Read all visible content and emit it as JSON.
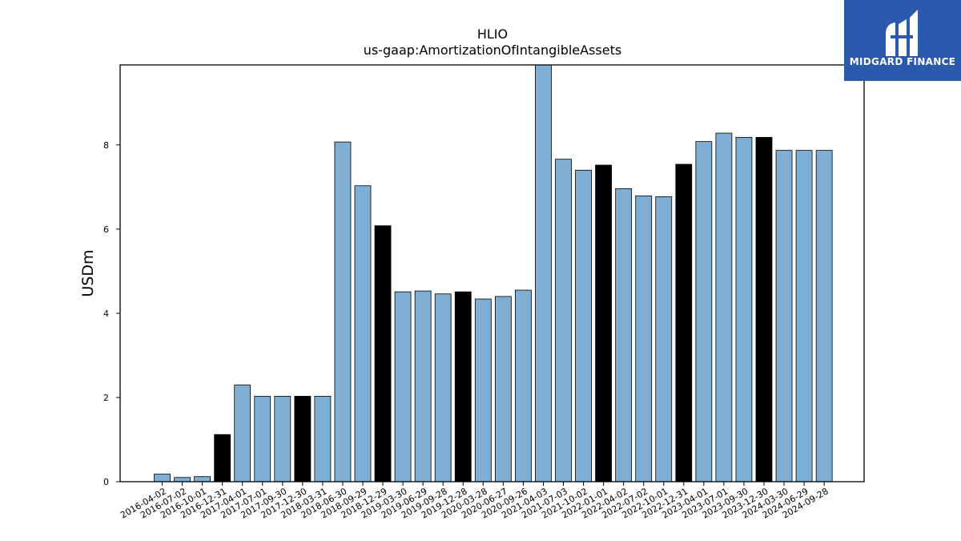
{
  "logo": {
    "text": "MIDGARD FINANCE",
    "bg_color": "#2b5aad"
  },
  "colors": {
    "default_bar": "#7eaed3",
    "highlight_bar": "#000000"
  },
  "chart_data": {
    "type": "bar",
    "title": "HLIO",
    "subtitle": "us-gaap:AmortizationOfIntangibleAssets",
    "ylabel": "USDm",
    "xlabel": "",
    "ylim": [
      0,
      9.9
    ],
    "yticks": [
      0,
      2,
      4,
      6,
      8
    ],
    "grid": false,
    "categories": [
      "2016-04-02",
      "2016-07-02",
      "2016-10-01",
      "2016-12-31",
      "2017-04-01",
      "2017-07-01",
      "2017-09-30",
      "2017-12-30",
      "2018-03-31",
      "2018-06-30",
      "2018-09-29",
      "2018-12-29",
      "2019-03-30",
      "2019-06-29",
      "2019-09-28",
      "2019-12-28",
      "2020-03-28",
      "2020-06-27",
      "2020-09-26",
      "2021-04-03",
      "2021-07-03",
      "2021-10-02",
      "2022-01-01",
      "2022-04-02",
      "2022-07-02",
      "2022-10-01",
      "2022-12-31",
      "2023-04-01",
      "2023-07-01",
      "2023-09-30",
      "2023-12-30",
      "2024-03-30",
      "2024-06-29",
      "2024-09-28"
    ],
    "values": [
      0.18,
      0.1,
      0.12,
      1.12,
      2.3,
      2.03,
      2.03,
      2.03,
      2.03,
      8.07,
      7.03,
      6.08,
      4.51,
      4.53,
      4.46,
      4.51,
      4.34,
      4.4,
      4.55,
      9.95,
      7.66,
      7.4,
      7.52,
      6.96,
      6.79,
      6.77,
      7.54,
      8.08,
      8.28,
      8.18,
      8.18,
      7.87,
      7.87,
      7.87
    ],
    "highlighted": [
      false,
      false,
      false,
      true,
      false,
      false,
      false,
      true,
      false,
      false,
      false,
      true,
      false,
      false,
      false,
      true,
      false,
      false,
      false,
      false,
      false,
      false,
      true,
      false,
      false,
      false,
      true,
      false,
      false,
      false,
      true,
      false,
      false,
      false
    ]
  }
}
